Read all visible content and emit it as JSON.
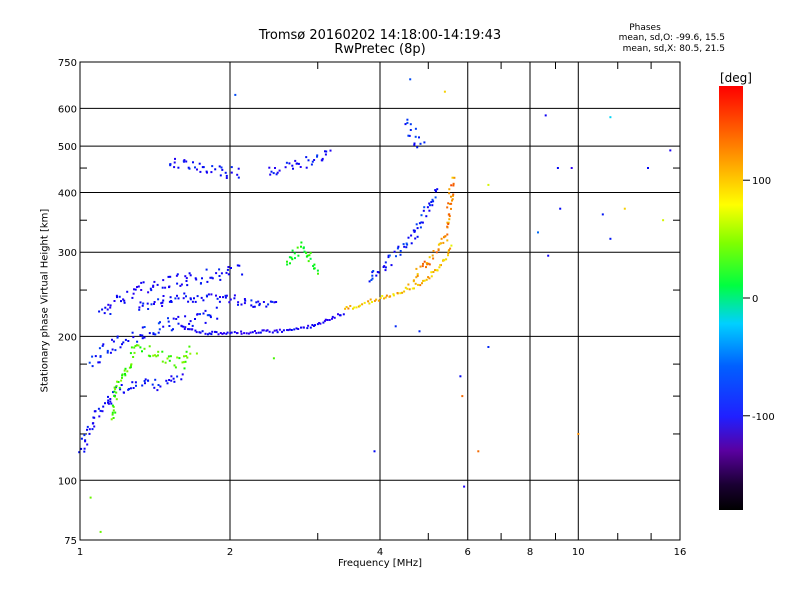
{
  "header": {
    "title": "Tromsø 20160202 14:18:00-14:19:43",
    "subtitle": "RwPretec (8p)"
  },
  "phase_info": {
    "title": "Phases",
    "line_o": "mean, sd,O: -99.6, 15.5",
    "line_x": "mean, sd,X: 80.5, 21.5"
  },
  "colorbar": {
    "label": "[deg]",
    "ticks": [
      "100",
      "0",
      "-100"
    ],
    "tick_values": [
      100,
      0,
      -100
    ],
    "range": [
      -180,
      180
    ]
  },
  "chart_data": {
    "type": "scatter",
    "title": "Tromsø 20160202 14:18:00-14:19:43",
    "subtitle": "RwPretec (8p)",
    "xlabel": "Frequency [MHz]",
    "ylabel": "Stationary phase Virtual Height [km]",
    "x_scale": "log",
    "y_scale": "log",
    "xlim": [
      1,
      16
    ],
    "ylim": [
      75,
      750
    ],
    "x_ticks": [
      1,
      2,
      4,
      6,
      8,
      10,
      16
    ],
    "x_tick_labels": [
      "1",
      "2",
      "4",
      "6",
      "8",
      "10",
      "16"
    ],
    "y_ticks": [
      75,
      100,
      200,
      300,
      400,
      500,
      600,
      750
    ],
    "y_tick_labels": [
      "75",
      "100",
      "200",
      "300",
      "400",
      "500",
      "600",
      "750"
    ],
    "grid": true,
    "color_by": "phase [deg]",
    "traces": [
      {
        "x": [
          1.0,
          1.05,
          1.1,
          1.15,
          1.2,
          1.3,
          1.4,
          1.5,
          1.6
        ],
        "y": [
          115,
          130,
          140,
          150,
          155,
          158,
          158,
          160,
          165
        ],
        "phase": -105,
        "spread": 12
      },
      {
        "x": [
          1.05,
          1.1,
          1.2,
          1.3,
          1.4,
          1.5,
          1.6,
          1.7,
          1.8,
          1.9
        ],
        "y": [
          175,
          185,
          195,
          200,
          205,
          210,
          215,
          215,
          220,
          225
        ],
        "phase": -100,
        "spread": 14
      },
      {
        "x": [
          1.1,
          1.2,
          1.3,
          1.4,
          1.5,
          1.6,
          1.7,
          1.8,
          1.9,
          2.0,
          2.1
        ],
        "y": [
          225,
          240,
          250,
          255,
          260,
          262,
          265,
          268,
          270,
          272,
          275
        ],
        "phase": -110,
        "spread": 14
      },
      {
        "x": [
          1.6,
          1.7,
          1.8,
          1.9,
          2.0,
          2.2,
          2.5,
          2.8,
          3.0,
          3.2,
          3.4
        ],
        "y": [
          210,
          205,
          203,
          203,
          203,
          204,
          205,
          208,
          212,
          218,
          225
        ],
        "phase": -115,
        "spread": 3
      },
      {
        "x": [
          1.3,
          1.4,
          1.5,
          1.6,
          1.8,
          2.0,
          2.2,
          2.5
        ],
        "y": [
          230,
          235,
          238,
          240,
          242,
          240,
          235,
          235
        ],
        "phase": -105,
        "spread": 10
      },
      {
        "x": [
          1.5,
          1.6,
          1.7,
          1.8,
          1.9,
          2.0,
          2.1
        ],
        "y": [
          470,
          460,
          450,
          445,
          440,
          440,
          440
        ],
        "phase": -105,
        "spread": 12
      },
      {
        "x": [
          2.4,
          2.5,
          2.6,
          2.8,
          3.0,
          3.2
        ],
        "y": [
          440,
          445,
          450,
          460,
          470,
          490
        ],
        "phase": -105,
        "spread": 10
      },
      {
        "x": [
          3.4,
          3.6,
          3.8,
          4.0,
          4.2,
          4.4,
          4.6,
          4.8,
          5.0,
          5.2,
          5.4,
          5.6
        ],
        "y": [
          228,
          232,
          236,
          240,
          244,
          248,
          252,
          258,
          265,
          275,
          290,
          310
        ],
        "phase": 125,
        "spread": 4
      },
      {
        "x": [
          3.8,
          4.0,
          4.2,
          4.4,
          4.6,
          4.8,
          5.0,
          5.2
        ],
        "y": [
          260,
          275,
          290,
          305,
          320,
          340,
          370,
          410
        ],
        "phase": -95,
        "spread": 10
      },
      {
        "x": [
          4.6,
          4.8,
          5.0,
          5.2,
          5.4,
          5.5,
          5.6
        ],
        "y": [
          260,
          275,
          285,
          300,
          320,
          360,
          430
        ],
        "phase": 140,
        "spread": 8
      },
      {
        "x": [
          2.6,
          2.7,
          2.8,
          2.9,
          3.0
        ],
        "y": [
          280,
          300,
          310,
          295,
          270
        ],
        "phase": 40,
        "spread": 10
      },
      {
        "x": [
          1.15,
          1.2,
          1.3,
          1.4,
          1.6,
          1.7
        ],
        "y": [
          135,
          160,
          190,
          185,
          175,
          190
        ],
        "phase": 60,
        "spread": 12
      },
      {
        "x": [
          4.5,
          4.7,
          4.9
        ],
        "y": [
          560,
          520,
          500
        ],
        "phase": -95,
        "spread": 12
      }
    ],
    "sparse_points": [
      {
        "x": 1.05,
        "y": 92,
        "phase": 70
      },
      {
        "x": 1.1,
        "y": 78,
        "phase": 70
      },
      {
        "x": 2.05,
        "y": 640,
        "phase": -80
      },
      {
        "x": 2.45,
        "y": 180,
        "phase": 60
      },
      {
        "x": 4.6,
        "y": 690,
        "phase": -80
      },
      {
        "x": 5.4,
        "y": 650,
        "phase": 120
      },
      {
        "x": 5.8,
        "y": 165,
        "phase": -100
      },
      {
        "x": 5.9,
        "y": 97,
        "phase": -120
      },
      {
        "x": 5.85,
        "y": 150,
        "phase": 150
      },
      {
        "x": 6.3,
        "y": 115,
        "phase": 150
      },
      {
        "x": 6.6,
        "y": 190,
        "phase": -90
      },
      {
        "x": 6.6,
        "y": 415,
        "phase": 100
      },
      {
        "x": 8.3,
        "y": 330,
        "phase": -70
      },
      {
        "x": 8.6,
        "y": 580,
        "phase": -110
      },
      {
        "x": 8.7,
        "y": 295,
        "phase": -110
      },
      {
        "x": 9.1,
        "y": 450,
        "phase": -100
      },
      {
        "x": 9.2,
        "y": 370,
        "phase": -100
      },
      {
        "x": 9.7,
        "y": 450,
        "phase": -130
      },
      {
        "x": 10.0,
        "y": 125,
        "phase": 140
      },
      {
        "x": 11.2,
        "y": 360,
        "phase": -95
      },
      {
        "x": 11.6,
        "y": 575,
        "phase": -40
      },
      {
        "x": 11.6,
        "y": 320,
        "phase": -95
      },
      {
        "x": 12.4,
        "y": 370,
        "phase": 120
      },
      {
        "x": 13.8,
        "y": 450,
        "phase": -100
      },
      {
        "x": 14.8,
        "y": 350,
        "phase": 100
      },
      {
        "x": 15.3,
        "y": 490,
        "phase": -120
      },
      {
        "x": 3.9,
        "y": 115,
        "phase": -100
      },
      {
        "x": 4.3,
        "y": 210,
        "phase": -90
      },
      {
        "x": 4.8,
        "y": 205,
        "phase": -90
      }
    ]
  }
}
